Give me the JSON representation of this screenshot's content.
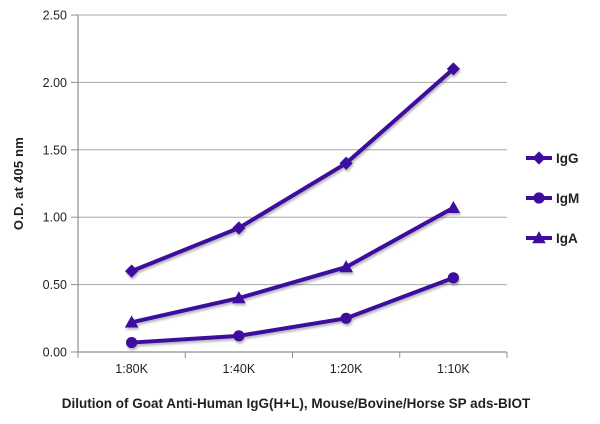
{
  "page": {
    "background": "#ffffff"
  },
  "chart_data": {
    "type": "line",
    "title": "",
    "ylabel": "O.D. at 405 nm",
    "xlabel": "Dilution of Goat Anti-Human IgG(H+L), Mouse/Bovine/Horse SP ads-BIOT",
    "categories": [
      "1:80K",
      "1:40K",
      "1:20K",
      "1:10K"
    ],
    "y_ticks": [
      "0.00",
      "0.50",
      "1.00",
      "1.50",
      "2.00",
      "2.50"
    ],
    "ylim": [
      0,
      2.5
    ],
    "grid": true,
    "legend_position": "right",
    "colors": {
      "series_line": "#3e0d9e",
      "grid_line": "#a8a8a8",
      "axis_line": "#8f8f8f",
      "text": "#231f20"
    },
    "series": [
      {
        "name": "IgG",
        "marker": "diamond",
        "values": [
          0.6,
          0.92,
          1.4,
          2.1
        ]
      },
      {
        "name": "IgM",
        "marker": "circle",
        "values": [
          0.07,
          0.12,
          0.25,
          0.55
        ]
      },
      {
        "name": "IgA",
        "marker": "triangle",
        "values": [
          0.22,
          0.4,
          0.63,
          1.07
        ]
      }
    ]
  }
}
